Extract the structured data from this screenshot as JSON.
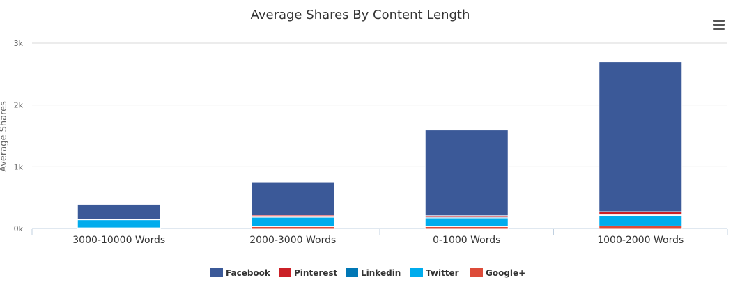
{
  "chart_data": {
    "type": "bar",
    "stacked": true,
    "title": "Average Shares By Content Length",
    "ylabel": "Average Shares",
    "xlabel": "",
    "ylim": [
      0,
      3000
    ],
    "yticks": [
      {
        "value": 0,
        "label": "0k"
      },
      {
        "value": 1000,
        "label": "1k"
      },
      {
        "value": 2000,
        "label": "2k"
      },
      {
        "value": 3000,
        "label": "3k"
      }
    ],
    "grid": true,
    "legend_position": "bottom",
    "categories": [
      "3000-10000 Words",
      "2000-3000 Words",
      "0-1000 Words",
      "1000-2000 Words"
    ],
    "series": [
      {
        "name": "Facebook",
        "color": "#3b5998",
        "values": [
          240,
          540,
          1390,
          2430
        ]
      },
      {
        "name": "Pinterest",
        "color": "#cb2027",
        "values": [
          5,
          20,
          20,
          40
        ]
      },
      {
        "name": "Linkedin",
        "color": "#0077b5",
        "values": [
          5,
          15,
          15,
          20
        ]
      },
      {
        "name": "Twitter",
        "color": "#00aced",
        "values": [
          130,
          150,
          140,
          170
        ]
      },
      {
        "name": "Google+",
        "color": "#dd4b39",
        "values": [
          10,
          30,
          30,
          40
        ]
      }
    ]
  },
  "menu": {
    "icon": "hamburger-menu-icon"
  }
}
